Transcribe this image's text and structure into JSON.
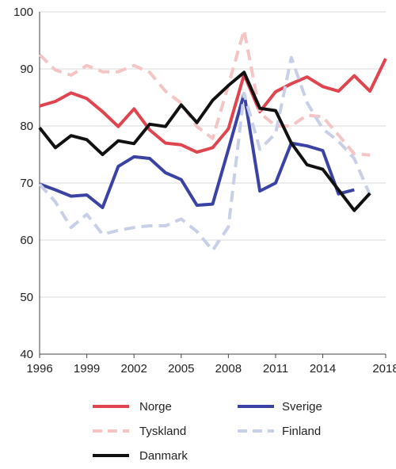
{
  "chart_data": {
    "type": "line",
    "x_ticks": [
      "1996",
      "1999",
      "2002",
      "2005",
      "2008",
      "2011",
      "2014",
      "2018"
    ],
    "y_ticks": [
      "40",
      "50",
      "60",
      "70",
      "80",
      "90",
      "100"
    ],
    "xlim": [
      1996,
      2018
    ],
    "ylim": [
      40,
      100
    ],
    "grid": "horizontal",
    "legend": "bottom",
    "series": [
      {
        "name": "Norge",
        "color": "#e0444e",
        "dash": "solid",
        "x": [
          1996,
          1997,
          1998,
          1999,
          2000,
          2001,
          2002,
          2003,
          2004,
          2005,
          2006,
          2007,
          2008,
          2009,
          2010,
          2011,
          2012,
          2013,
          2014,
          2015,
          2016,
          2017,
          2018
        ],
        "values": [
          83.5,
          84.3,
          85.8,
          84.8,
          82.5,
          79.9,
          83.0,
          79.3,
          77.0,
          76.7,
          75.4,
          76.2,
          79.5,
          89.0,
          82.5,
          86.0,
          87.4,
          88.6,
          86.9,
          86.1,
          88.8,
          86.1,
          91.8
        ]
      },
      {
        "name": "Sverige",
        "color": "#3a43a4",
        "dash": "solid",
        "x": [
          1996,
          1997,
          1998,
          1999,
          2000,
          2001,
          2002,
          2003,
          2004,
          2005,
          2006,
          2007,
          2008,
          2009,
          2010,
          2011,
          2012,
          2013,
          2014,
          2015,
          2016
        ],
        "values": [
          69.8,
          68.8,
          67.7,
          67.9,
          65.7,
          72.9,
          74.6,
          74.3,
          71.8,
          70.6,
          66.1,
          66.3,
          75.9,
          85.7,
          68.6,
          70.0,
          77.0,
          76.5,
          75.7,
          68.1,
          68.8
        ]
      },
      {
        "name": "Tyskland",
        "color": "#f5c4c4",
        "dash": "dashed",
        "x": [
          1996,
          1997,
          1998,
          1999,
          2000,
          2001,
          2002,
          2003,
          2004,
          2005,
          2006,
          2007,
          2008,
          2009,
          2010,
          2011,
          2012,
          2013,
          2014,
          2015,
          2016,
          2017
        ],
        "values": [
          92.5,
          89.8,
          88.9,
          90.6,
          89.5,
          89.5,
          90.6,
          89.4,
          86.1,
          84.0,
          79.9,
          77.8,
          87.2,
          96.8,
          82.3,
          80.0,
          80.0,
          81.9,
          81.6,
          78.4,
          75.1,
          74.9
        ]
      },
      {
        "name": "Finland",
        "color": "#c8d0e8",
        "dash": "dashed",
        "x": [
          1996,
          1997,
          1998,
          1999,
          2000,
          2001,
          2002,
          2003,
          2004,
          2005,
          2006,
          2007,
          2008,
          2009,
          2010,
          2011,
          2012,
          2013,
          2014,
          2015,
          2016,
          2017
        ],
        "values": [
          69.8,
          66.7,
          62.2,
          64.5,
          61.0,
          61.7,
          62.2,
          62.5,
          62.5,
          63.7,
          61.5,
          58.2,
          62.3,
          85.7,
          75.9,
          78.7,
          92.0,
          84.1,
          79.5,
          77.3,
          74.3,
          67.9
        ]
      },
      {
        "name": "Danmark",
        "color": "#111111",
        "dash": "solid",
        "x": [
          1996,
          1997,
          1998,
          1999,
          2000,
          2001,
          2002,
          2003,
          2004,
          2005,
          2006,
          2007,
          2008,
          2009,
          2010,
          2011,
          2012,
          2013,
          2014,
          2015,
          2016,
          2017
        ],
        "values": [
          79.7,
          76.2,
          78.3,
          77.6,
          75.0,
          77.4,
          76.9,
          80.3,
          79.9,
          83.7,
          80.6,
          84.5,
          87.1,
          89.4,
          83.1,
          82.7,
          77.0,
          73.2,
          72.4,
          68.8,
          65.2,
          68.2
        ]
      }
    ]
  }
}
